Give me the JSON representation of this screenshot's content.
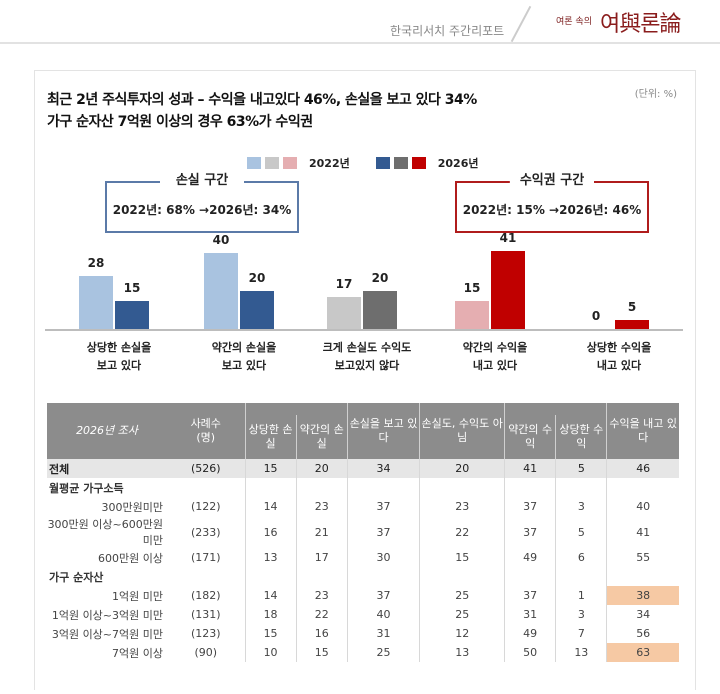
{
  "header": {
    "report_name": "한국리서치 주간리포트",
    "brand_small": "여론 속의",
    "brand_big": "여與론論"
  },
  "panel": {
    "title_line1": "최근 2년 주식투자의 성과 – 수익을 내고있다 46%, 손실을 보고 있다 34%",
    "title_line2": "가구 순자산 7억원 이상의 경우 63%가 수익권",
    "unit": "(단위: %)"
  },
  "legend": {
    "label_2022": "2022년",
    "label_2026": "2026년",
    "colors_2022": [
      "#a9c3e0",
      "#c8c8c8",
      "#e5aeb1"
    ],
    "colors_2026": [
      "#335a91",
      "#6e6e6e",
      "#c00000"
    ]
  },
  "zones": {
    "loss": {
      "title": "손실 구간",
      "text": "2022년: 68% →2026년: 34%",
      "color": "#5b7aa8"
    },
    "gain": {
      "title": "수익권 구간",
      "text": "2022년: 15% →2026년: 46%",
      "color": "#b01c1c"
    }
  },
  "chart_data": {
    "type": "bar",
    "title": "최근 2년 주식투자의 성과",
    "categories": [
      "상당한 손실을 보고 있다",
      "약간의 손실을 보고 있다",
      "크게 손실도 수익도 보고있지 않다",
      "약간의 수익을 내고 있다",
      "상당한 수익을 내고 있다"
    ],
    "category_lines": [
      [
        "상당한 손실을",
        "보고 있다"
      ],
      [
        "약간의 손실을",
        "보고 있다"
      ],
      [
        "크게 손실도 수익도",
        "보고있지 않다"
      ],
      [
        "약간의 수익을",
        "내고 있다"
      ],
      [
        "상당한 수익을",
        "내고 있다"
      ]
    ],
    "series": [
      {
        "name": "2022년",
        "values": [
          28,
          40,
          17,
          15,
          0
        ]
      },
      {
        "name": "2026년",
        "values": [
          15,
          20,
          20,
          41,
          5
        ]
      }
    ],
    "unit": "%",
    "ylim": [
      0,
      45
    ],
    "legend_position": "top"
  },
  "table": {
    "corner_label": "2026년 조사",
    "n_header": "사례수\n(명)",
    "columns": [
      "상당한 손실",
      "약간의 손실",
      "손실을 보고 있다",
      "손실도, 수익도 아님",
      "약간의 수익",
      "상당한 수익",
      "수익을 내고 있다"
    ],
    "total": {
      "label": "전체",
      "n": "(526)",
      "values": [
        "15",
        "20",
        "34",
        "20",
        "41",
        "5",
        "46"
      ]
    },
    "sections": [
      {
        "title": "월평균 가구소득",
        "rows": [
          {
            "label": "300만원미만",
            "n": "(122)",
            "values": [
              "14",
              "23",
              "37",
              "23",
              "37",
              "3",
              "40"
            ],
            "highlight": false
          },
          {
            "label": "300만원 이상~600만원 미만",
            "n": "(233)",
            "values": [
              "16",
              "21",
              "37",
              "22",
              "37",
              "5",
              "41"
            ],
            "highlight": false
          },
          {
            "label": "600만원 이상",
            "n": "(171)",
            "values": [
              "13",
              "17",
              "30",
              "15",
              "49",
              "6",
              "55"
            ],
            "highlight": false
          }
        ]
      },
      {
        "title": "가구 순자산",
        "rows": [
          {
            "label": "1억원 미만",
            "n": "(182)",
            "values": [
              "14",
              "23",
              "37",
              "25",
              "37",
              "1",
              "38"
            ],
            "highlight": true
          },
          {
            "label": "1억원 이상~3억원 미만",
            "n": "(131)",
            "values": [
              "18",
              "22",
              "40",
              "25",
              "31",
              "3",
              "34"
            ],
            "highlight": false
          },
          {
            "label": "3억원 이상~7억원 미만",
            "n": "(123)",
            "values": [
              "15",
              "16",
              "31",
              "12",
              "49",
              "7",
              "56"
            ],
            "highlight": false
          },
          {
            "label": "7억원 이상",
            "n": "(90)",
            "values": [
              "10",
              "15",
              "25",
              "13",
              "50",
              "13",
              "63"
            ],
            "highlight": true
          }
        ]
      }
    ],
    "highlight_color": "#f6c9a4"
  }
}
